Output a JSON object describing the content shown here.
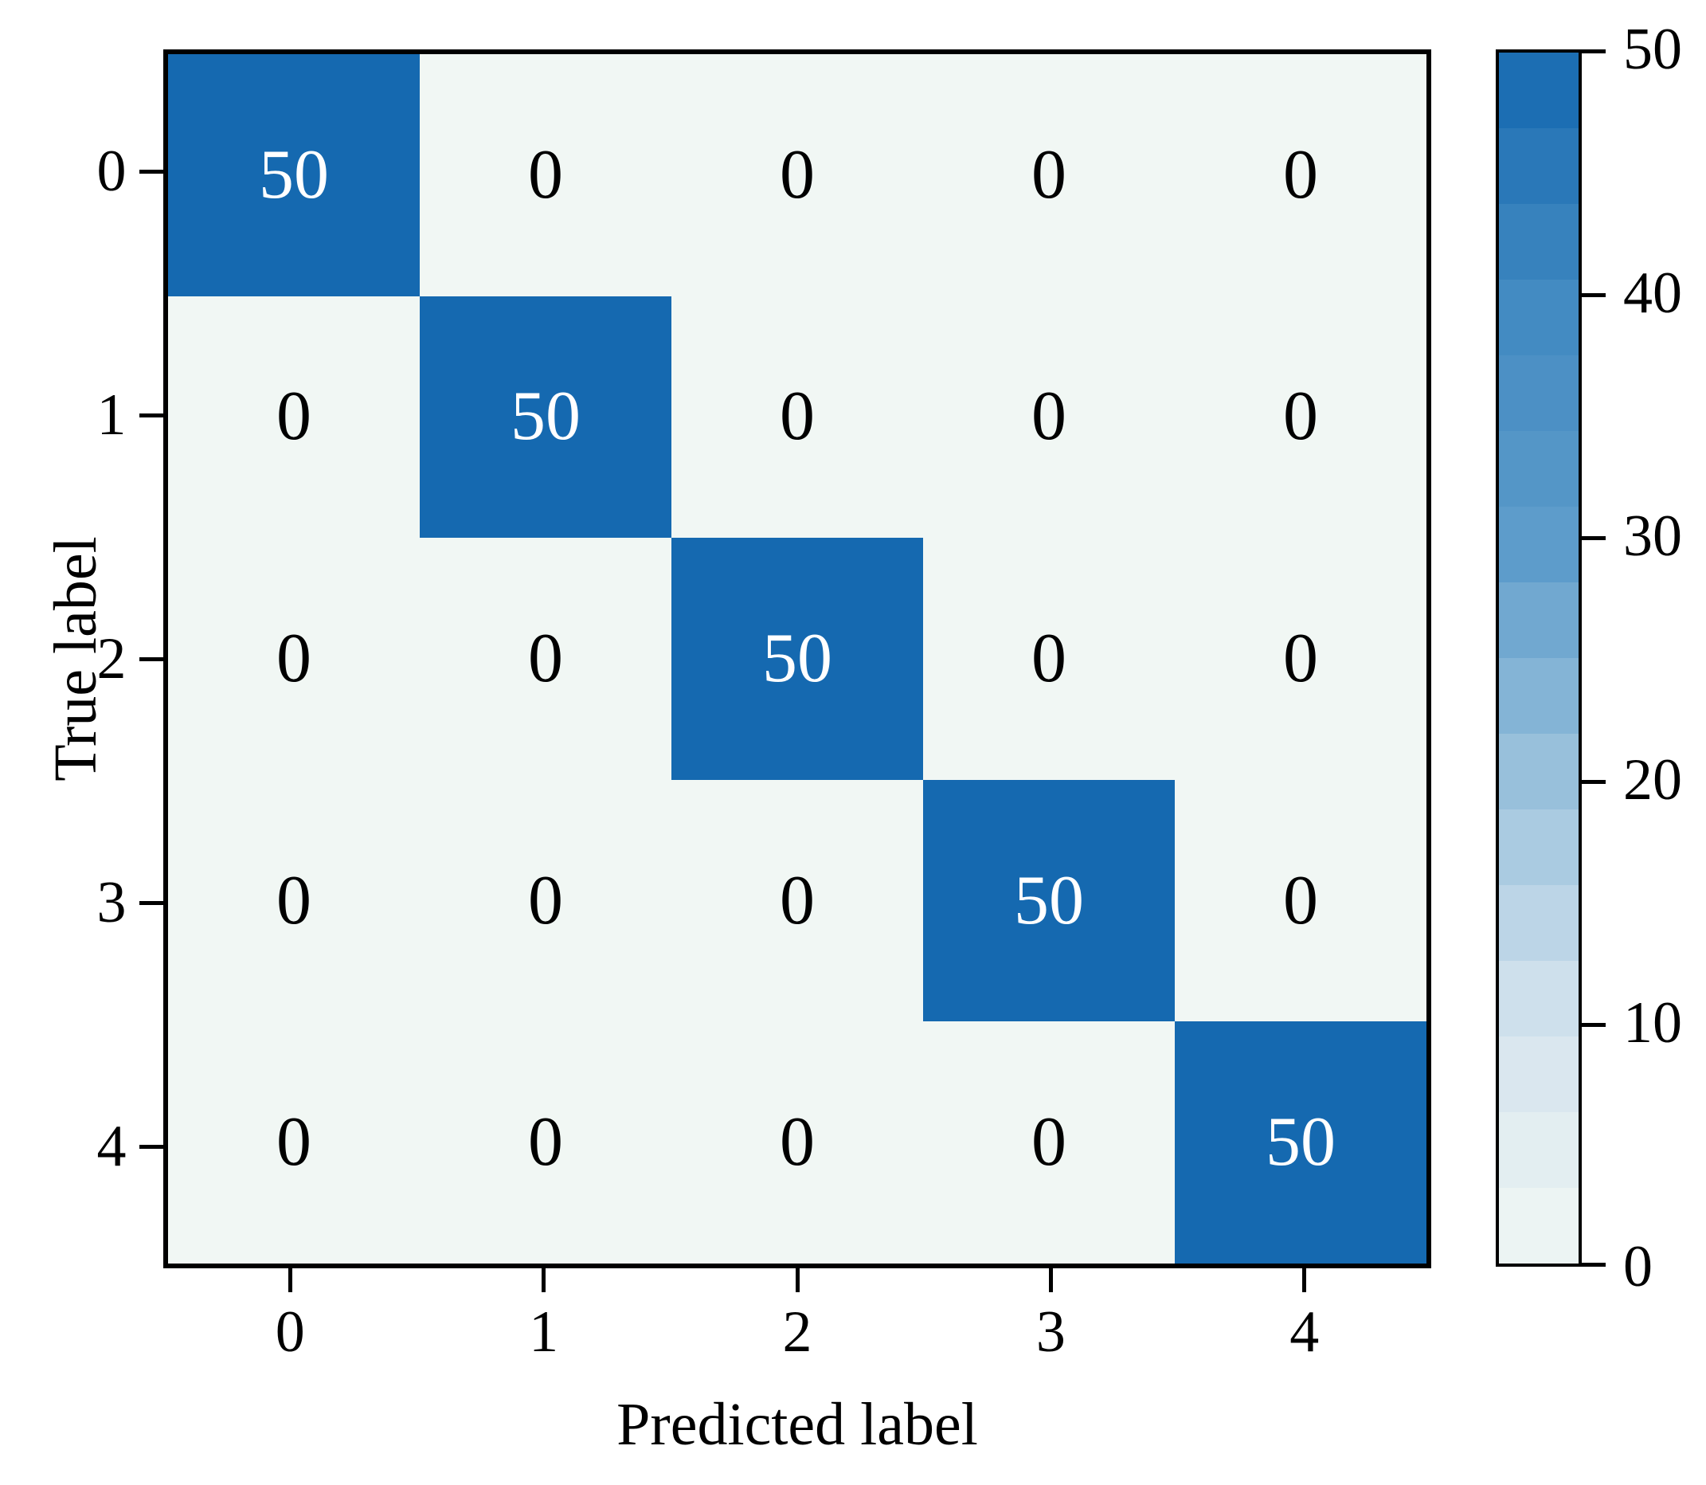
{
  "chart_data": {
    "type": "heatmap",
    "subtype": "confusion-matrix",
    "xlabel": "Predicted label",
    "ylabel": "True label",
    "x_tick_labels": [
      "0",
      "1",
      "2",
      "3",
      "4"
    ],
    "y_tick_labels": [
      "0",
      "1",
      "2",
      "3",
      "4"
    ],
    "matrix": [
      [
        50,
        0,
        0,
        0,
        0
      ],
      [
        0,
        50,
        0,
        0,
        0
      ],
      [
        0,
        0,
        50,
        0,
        0
      ],
      [
        0,
        0,
        0,
        50,
        0
      ],
      [
        0,
        0,
        0,
        0,
        50
      ]
    ],
    "colorbar": {
      "min": 0,
      "max": 50,
      "tick_values": [
        0,
        10,
        20,
        30,
        40,
        50
      ],
      "tick_labels": [
        "0",
        "10",
        "20",
        "30",
        "40",
        "50"
      ]
    },
    "colors": {
      "cmap_stops": [
        [
          0.0,
          "#f1f7f4"
        ],
        [
          0.2,
          "#d3e3ee"
        ],
        [
          0.4,
          "#9ac1dc"
        ],
        [
          0.6,
          "#5b9bca"
        ],
        [
          0.8,
          "#4189c1"
        ],
        [
          1.0,
          "#1569b0"
        ]
      ],
      "diagonal_cell": "#1569b0",
      "off_diagonal_cell": "#f1f7f4",
      "value_text_on_dark": "#ffffff",
      "value_text_on_light": "#000000",
      "axis_color": "#000000",
      "background": "#ffffff"
    },
    "legend_position": "right-colorbar",
    "grid": false
  }
}
